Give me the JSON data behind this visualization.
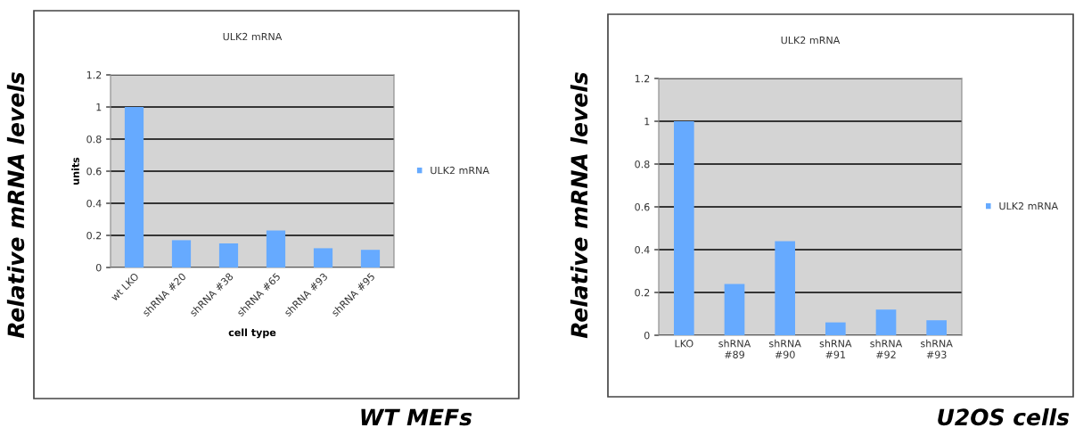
{
  "chart_data": [
    {
      "type": "bar",
      "title": "ULK2 mRNA",
      "xlabel": "cell type",
      "ylabel": "units",
      "categories": [
        "wt LKO",
        "shRNA #20",
        "shRNA #38",
        "shRNA #65",
        "shRNA #93",
        "shRNA #95"
      ],
      "series": [
        {
          "name": "ULK2 mRNA",
          "color": "#66aaff",
          "values": [
            1.0,
            0.17,
            0.15,
            0.23,
            0.12,
            0.11
          ]
        }
      ],
      "ylim": [
        0,
        1.2
      ],
      "yticks": [
        0,
        0.2,
        0.4,
        0.6,
        0.8,
        1,
        1.2
      ],
      "grid": "y",
      "legend": "right",
      "annotations": [
        "Relative mRNA levels",
        "WT MEFs"
      ]
    },
    {
      "type": "bar",
      "title": "ULK2 mRNA",
      "categories": [
        "LKO",
        "shRNA #89",
        "shRNA #90",
        "shRNA #91",
        "shRNA #92",
        "shRNA #93"
      ],
      "series": [
        {
          "name": "ULK2 mRNA",
          "color": "#66aaff",
          "values": [
            1.0,
            0.24,
            0.44,
            0.06,
            0.12,
            0.07
          ]
        }
      ],
      "ylim": [
        0,
        1.2
      ],
      "yticks": [
        0,
        0.2,
        0.4,
        0.6,
        0.8,
        1,
        1.2
      ],
      "grid": "y",
      "legend": "right",
      "annotations": [
        "Relative mRNA levels",
        "U2OS cells"
      ]
    }
  ]
}
